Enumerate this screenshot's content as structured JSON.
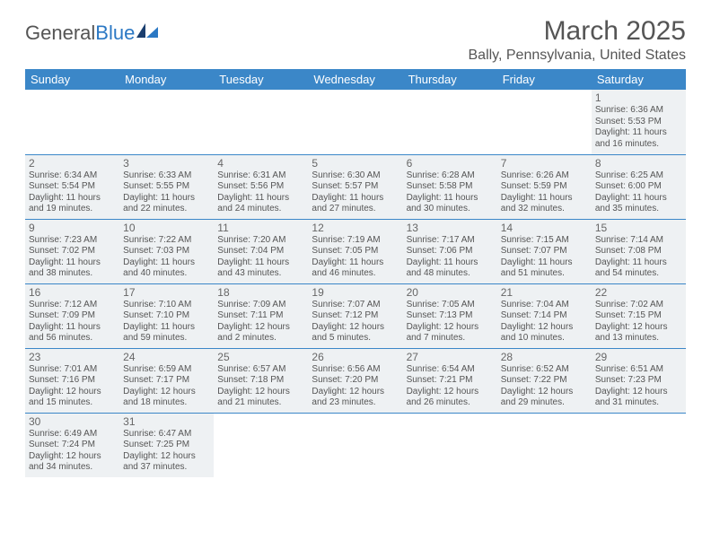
{
  "colors": {
    "header_bg": "#3b87c8",
    "header_text": "#ffffff",
    "cell_fill": "#eef1f3",
    "row_border": "#3b87c8",
    "body_text": "#555555",
    "logo_accent": "#2b78c4"
  },
  "logo": {
    "part1": "General",
    "part2": "Blue"
  },
  "title": "March 2025",
  "location": "Bally, Pennsylvania, United States",
  "day_headers": [
    "Sunday",
    "Monday",
    "Tuesday",
    "Wednesday",
    "Thursday",
    "Friday",
    "Saturday"
  ],
  "weeks": [
    [
      null,
      null,
      null,
      null,
      null,
      null,
      {
        "n": "1",
        "sr": "Sunrise: 6:36 AM",
        "ss": "Sunset: 5:53 PM",
        "d1": "Daylight: 11 hours",
        "d2": "and 16 minutes."
      }
    ],
    [
      {
        "n": "2",
        "sr": "Sunrise: 6:34 AM",
        "ss": "Sunset: 5:54 PM",
        "d1": "Daylight: 11 hours",
        "d2": "and 19 minutes."
      },
      {
        "n": "3",
        "sr": "Sunrise: 6:33 AM",
        "ss": "Sunset: 5:55 PM",
        "d1": "Daylight: 11 hours",
        "d2": "and 22 minutes."
      },
      {
        "n": "4",
        "sr": "Sunrise: 6:31 AM",
        "ss": "Sunset: 5:56 PM",
        "d1": "Daylight: 11 hours",
        "d2": "and 24 minutes."
      },
      {
        "n": "5",
        "sr": "Sunrise: 6:30 AM",
        "ss": "Sunset: 5:57 PM",
        "d1": "Daylight: 11 hours",
        "d2": "and 27 minutes."
      },
      {
        "n": "6",
        "sr": "Sunrise: 6:28 AM",
        "ss": "Sunset: 5:58 PM",
        "d1": "Daylight: 11 hours",
        "d2": "and 30 minutes."
      },
      {
        "n": "7",
        "sr": "Sunrise: 6:26 AM",
        "ss": "Sunset: 5:59 PM",
        "d1": "Daylight: 11 hours",
        "d2": "and 32 minutes."
      },
      {
        "n": "8",
        "sr": "Sunrise: 6:25 AM",
        "ss": "Sunset: 6:00 PM",
        "d1": "Daylight: 11 hours",
        "d2": "and 35 minutes."
      }
    ],
    [
      {
        "n": "9",
        "sr": "Sunrise: 7:23 AM",
        "ss": "Sunset: 7:02 PM",
        "d1": "Daylight: 11 hours",
        "d2": "and 38 minutes."
      },
      {
        "n": "10",
        "sr": "Sunrise: 7:22 AM",
        "ss": "Sunset: 7:03 PM",
        "d1": "Daylight: 11 hours",
        "d2": "and 40 minutes."
      },
      {
        "n": "11",
        "sr": "Sunrise: 7:20 AM",
        "ss": "Sunset: 7:04 PM",
        "d1": "Daylight: 11 hours",
        "d2": "and 43 minutes."
      },
      {
        "n": "12",
        "sr": "Sunrise: 7:19 AM",
        "ss": "Sunset: 7:05 PM",
        "d1": "Daylight: 11 hours",
        "d2": "and 46 minutes."
      },
      {
        "n": "13",
        "sr": "Sunrise: 7:17 AM",
        "ss": "Sunset: 7:06 PM",
        "d1": "Daylight: 11 hours",
        "d2": "and 48 minutes."
      },
      {
        "n": "14",
        "sr": "Sunrise: 7:15 AM",
        "ss": "Sunset: 7:07 PM",
        "d1": "Daylight: 11 hours",
        "d2": "and 51 minutes."
      },
      {
        "n": "15",
        "sr": "Sunrise: 7:14 AM",
        "ss": "Sunset: 7:08 PM",
        "d1": "Daylight: 11 hours",
        "d2": "and 54 minutes."
      }
    ],
    [
      {
        "n": "16",
        "sr": "Sunrise: 7:12 AM",
        "ss": "Sunset: 7:09 PM",
        "d1": "Daylight: 11 hours",
        "d2": "and 56 minutes."
      },
      {
        "n": "17",
        "sr": "Sunrise: 7:10 AM",
        "ss": "Sunset: 7:10 PM",
        "d1": "Daylight: 11 hours",
        "d2": "and 59 minutes."
      },
      {
        "n": "18",
        "sr": "Sunrise: 7:09 AM",
        "ss": "Sunset: 7:11 PM",
        "d1": "Daylight: 12 hours",
        "d2": "and 2 minutes."
      },
      {
        "n": "19",
        "sr": "Sunrise: 7:07 AM",
        "ss": "Sunset: 7:12 PM",
        "d1": "Daylight: 12 hours",
        "d2": "and 5 minutes."
      },
      {
        "n": "20",
        "sr": "Sunrise: 7:05 AM",
        "ss": "Sunset: 7:13 PM",
        "d1": "Daylight: 12 hours",
        "d2": "and 7 minutes."
      },
      {
        "n": "21",
        "sr": "Sunrise: 7:04 AM",
        "ss": "Sunset: 7:14 PM",
        "d1": "Daylight: 12 hours",
        "d2": "and 10 minutes."
      },
      {
        "n": "22",
        "sr": "Sunrise: 7:02 AM",
        "ss": "Sunset: 7:15 PM",
        "d1": "Daylight: 12 hours",
        "d2": "and 13 minutes."
      }
    ],
    [
      {
        "n": "23",
        "sr": "Sunrise: 7:01 AM",
        "ss": "Sunset: 7:16 PM",
        "d1": "Daylight: 12 hours",
        "d2": "and 15 minutes."
      },
      {
        "n": "24",
        "sr": "Sunrise: 6:59 AM",
        "ss": "Sunset: 7:17 PM",
        "d1": "Daylight: 12 hours",
        "d2": "and 18 minutes."
      },
      {
        "n": "25",
        "sr": "Sunrise: 6:57 AM",
        "ss": "Sunset: 7:18 PM",
        "d1": "Daylight: 12 hours",
        "d2": "and 21 minutes."
      },
      {
        "n": "26",
        "sr": "Sunrise: 6:56 AM",
        "ss": "Sunset: 7:20 PM",
        "d1": "Daylight: 12 hours",
        "d2": "and 23 minutes."
      },
      {
        "n": "27",
        "sr": "Sunrise: 6:54 AM",
        "ss": "Sunset: 7:21 PM",
        "d1": "Daylight: 12 hours",
        "d2": "and 26 minutes."
      },
      {
        "n": "28",
        "sr": "Sunrise: 6:52 AM",
        "ss": "Sunset: 7:22 PM",
        "d1": "Daylight: 12 hours",
        "d2": "and 29 minutes."
      },
      {
        "n": "29",
        "sr": "Sunrise: 6:51 AM",
        "ss": "Sunset: 7:23 PM",
        "d1": "Daylight: 12 hours",
        "d2": "and 31 minutes."
      }
    ],
    [
      {
        "n": "30",
        "sr": "Sunrise: 6:49 AM",
        "ss": "Sunset: 7:24 PM",
        "d1": "Daylight: 12 hours",
        "d2": "and 34 minutes."
      },
      {
        "n": "31",
        "sr": "Sunrise: 6:47 AM",
        "ss": "Sunset: 7:25 PM",
        "d1": "Daylight: 12 hours",
        "d2": "and 37 minutes."
      },
      null,
      null,
      null,
      null,
      null
    ]
  ]
}
